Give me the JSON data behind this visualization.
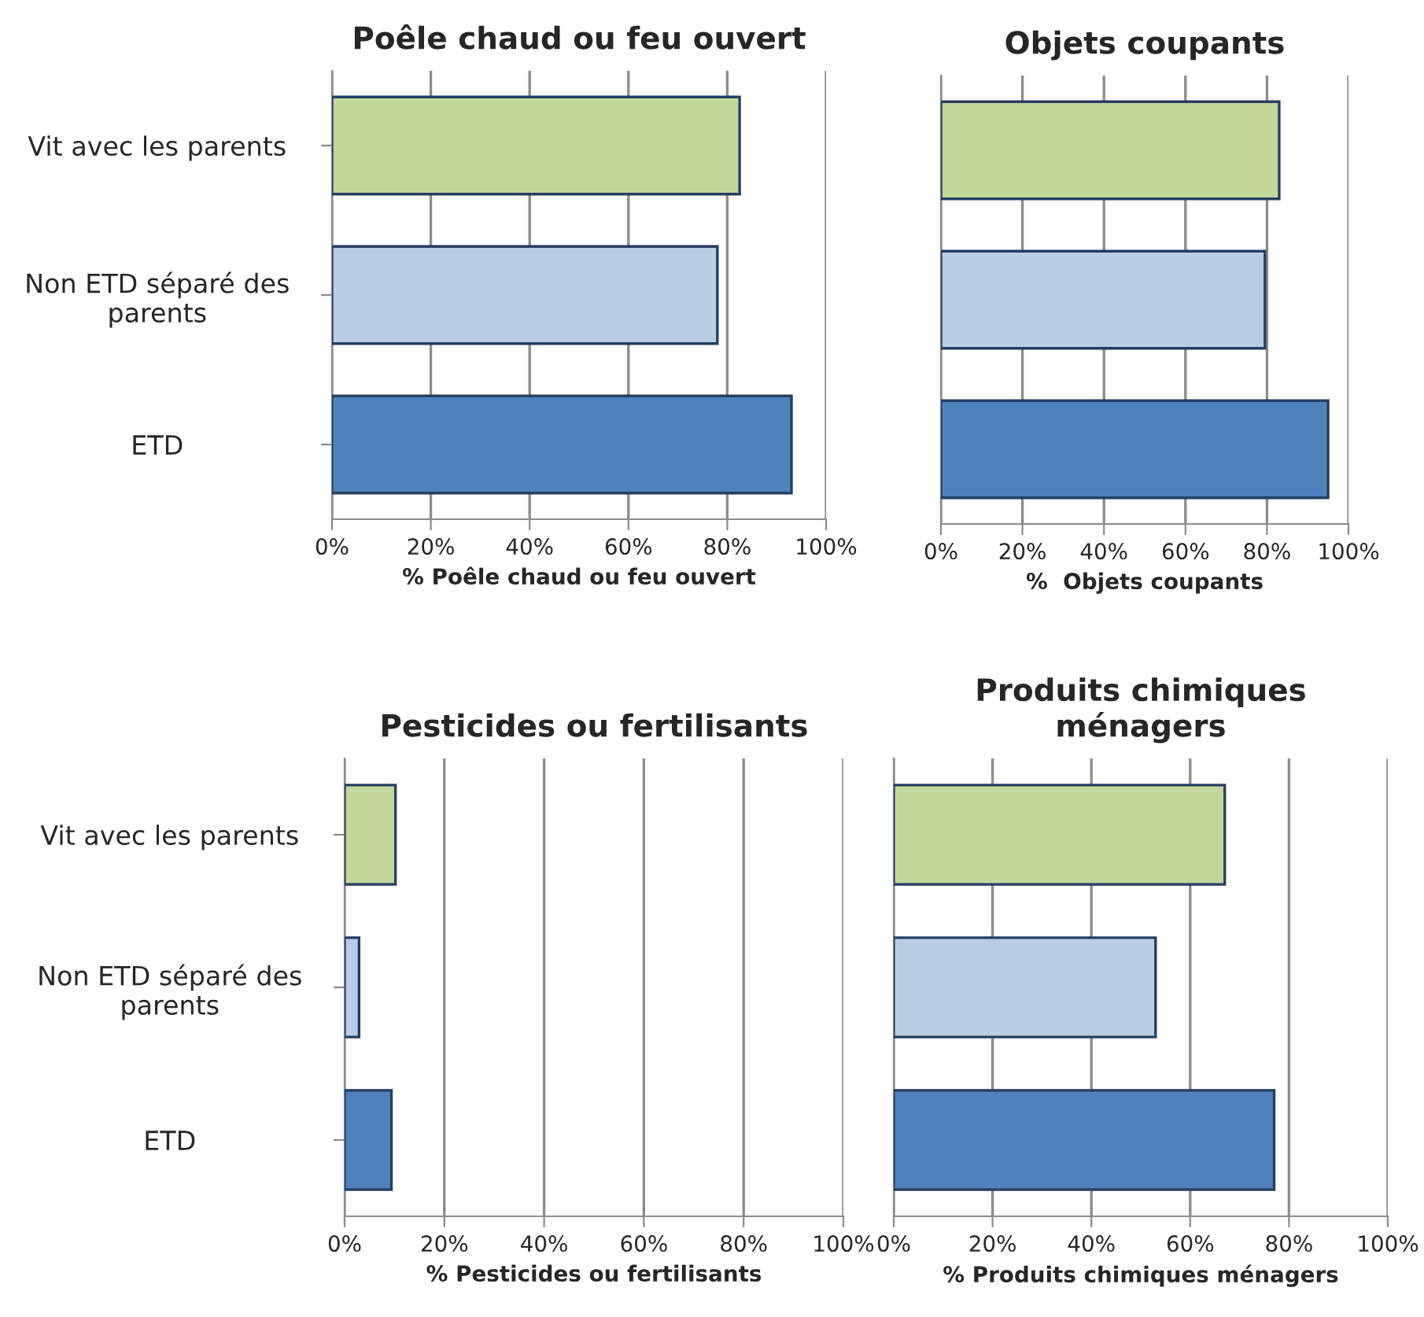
{
  "chart_data": [
    {
      "type": "bar",
      "orientation": "horizontal",
      "title": "Poêle chaud ou feu ouvert",
      "xlabel": "% Poêle chaud ou feu ouvert",
      "categories": [
        "Vit avec les parents",
        "Non ETD séparé des\nparents",
        "ETD"
      ],
      "values": [
        82.5,
        78,
        93
      ],
      "colors": [
        "#c4d79b",
        "#b9cde5",
        "#4f81bd"
      ],
      "xlim": [
        0,
        100
      ],
      "xticks": [
        {
          "value": 0,
          "label": "0%"
        },
        {
          "value": 20,
          "label": "20%"
        },
        {
          "value": 40,
          "label": "40%"
        },
        {
          "value": 60,
          "label": "60%"
        },
        {
          "value": 80,
          "label": "80%"
        },
        {
          "value": 100,
          "label": "100%"
        }
      ],
      "grid": "x",
      "legend": false
    },
    {
      "type": "bar",
      "orientation": "horizontal",
      "title": "Objets coupants",
      "xlabel": "%  Objets coupants",
      "categories": [
        null,
        null,
        null
      ],
      "values": [
        83,
        79.5,
        95
      ],
      "colors": [
        "#c4d79b",
        "#b9cde5",
        "#4f81bd"
      ],
      "xlim": [
        0,
        100
      ],
      "xticks": [
        {
          "value": 0,
          "label": "0%"
        },
        {
          "value": 20,
          "label": "20%"
        },
        {
          "value": 40,
          "label": "40%"
        },
        {
          "value": 60,
          "label": "60%"
        },
        {
          "value": 80,
          "label": "80%"
        },
        {
          "value": 100,
          "label": "100%"
        }
      ],
      "grid": "x",
      "legend": false,
      "tick_labels": "x"
    },
    {
      "type": "bar",
      "orientation": "horizontal",
      "title": "Pesticides ou fertilisants",
      "xlabel": "% Pesticides ou fertilisants",
      "categories": [
        "Vit avec les parents",
        "Non ETD séparé des\nparents",
        "ETD"
      ],
      "values": [
        10.2,
        2.9,
        9.4
      ],
      "colors": [
        "#c4d79b",
        "#b9cde5",
        "#4f81bd"
      ],
      "xlim": [
        0,
        100
      ],
      "xticks": [
        {
          "value": 0,
          "label": "0%"
        },
        {
          "value": 20,
          "label": "20%"
        },
        {
          "value": 40,
          "label": "40%"
        },
        {
          "value": 60,
          "label": "60%"
        },
        {
          "value": 80,
          "label": "80%"
        },
        {
          "value": 100,
          "label": "100%"
        }
      ],
      "grid": "x",
      "legend": false
    },
    {
      "type": "bar",
      "orientation": "horizontal",
      "title": "Produits chimiques\nménagers",
      "xlabel": "% Produits chimiques ménagers",
      "categories": [
        null,
        null,
        null
      ],
      "values": [
        67,
        53,
        77
      ],
      "colors": [
        "#c4d79b",
        "#b9cde5",
        "#4f81bd"
      ],
      "xlim": [
        0,
        100
      ],
      "xticks": [
        {
          "value": 0,
          "label": "0%"
        },
        {
          "value": 20,
          "label": "20%"
        },
        {
          "value": 40,
          "label": "40%"
        },
        {
          "value": 60,
          "label": "60%"
        },
        {
          "value": 80,
          "label": "80%"
        },
        {
          "value": 100,
          "label": "100%"
        }
      ],
      "grid": "x",
      "legend": false,
      "tick_labels": "x"
    }
  ]
}
